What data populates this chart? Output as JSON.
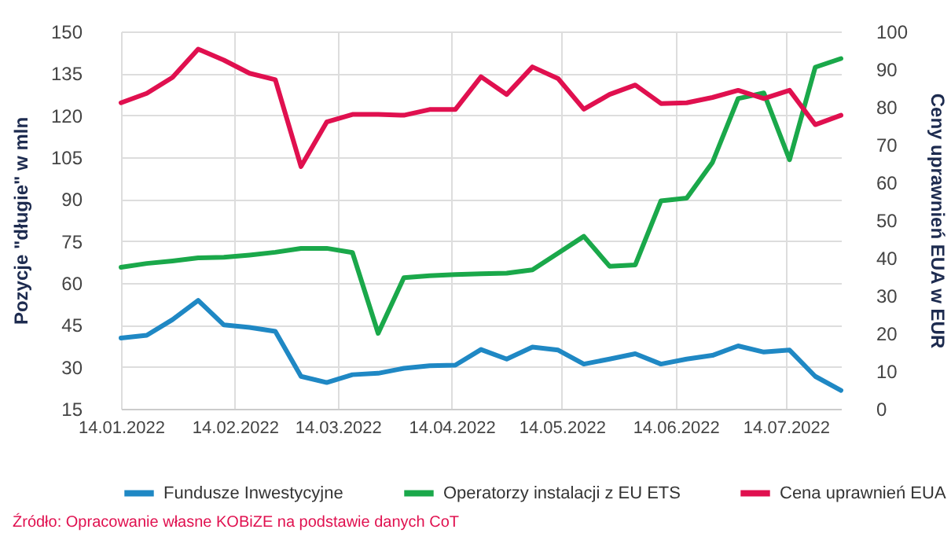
{
  "chart_data": {
    "type": "line",
    "ylabel": "Pozycje \"długie\" w mln",
    "y2label": "Ceny uprawnień EUA w EUR",
    "x": [
      "2022-01-14",
      "2022-01-21",
      "2022-01-28",
      "2022-02-04",
      "2022-02-11",
      "2022-02-18",
      "2022-02-25",
      "2022-03-04",
      "2022-03-11",
      "2022-03-18",
      "2022-03-25",
      "2022-04-01",
      "2022-04-08",
      "2022-04-15",
      "2022-04-22",
      "2022-04-29",
      "2022-05-06",
      "2022-05-13",
      "2022-05-20",
      "2022-05-27",
      "2022-06-03",
      "2022-06-10",
      "2022-06-17",
      "2022-06-24",
      "2022-07-01",
      "2022-07-08",
      "2022-07-15",
      "2022-07-22",
      "2022-07-29"
    ],
    "series": [
      {
        "name": "Fundusze Inwestycyjne",
        "color": "#1f88c4",
        "values": [
          40.3,
          41.3,
          46.9,
          53.8,
          45,
          44.1,
          42.7,
          26.6,
          24.4,
          27.2,
          27.7,
          29.5,
          30.4,
          30.6,
          36.2,
          32.8,
          37.1,
          36,
          31,
          32.8,
          34.7,
          31,
          32.8,
          34.1,
          37.5,
          35.3,
          36,
          26.6,
          21.6
        ]
      },
      {
        "name": "Operatorzy instalacji z EU ETS",
        "color": "#1aa84a",
        "values": [
          65.6,
          67,
          67.9,
          69,
          69.2,
          70,
          71,
          72.4,
          72.4,
          70.9,
          42,
          61.9,
          62.6,
          63,
          63.3,
          63.5,
          64.7,
          70.7,
          76.7,
          66,
          66.5,
          89.4,
          90.4,
          103.1,
          126,
          128,
          104.1,
          137.2,
          140.3
        ]
      },
      {
        "name": "Cena uprawnień EUA",
        "color": "#e0104f",
        "axis": "y2",
        "values": [
          81.1,
          83.6,
          87.8,
          95.3,
          92.4,
          88.9,
          87.2,
          64.2,
          76,
          78,
          78,
          77.8,
          79.3,
          79.3,
          88,
          83.3,
          90.6,
          87.5,
          79.4,
          83.3,
          85.8,
          80.9,
          81.1,
          82.5,
          84.4,
          82.2,
          84.4,
          75.3,
          77.8
        ]
      }
    ],
    "xlim": [
      "2022-01-14",
      "2022-07-29"
    ],
    "xticks": [
      {
        "value": "2022-01-14",
        "label": "14.01.2022"
      },
      {
        "value": "2022-02-14",
        "label": "14.02.2022"
      },
      {
        "value": "2022-03-14",
        "label": "14.03.2022"
      },
      {
        "value": "2022-04-14",
        "label": "14.04.2022"
      },
      {
        "value": "2022-05-14",
        "label": "14.05.2022"
      },
      {
        "value": "2022-06-14",
        "label": "14.06.2022"
      },
      {
        "value": "2022-07-14",
        "label": "14.07.2022"
      }
    ],
    "ylim": [
      15,
      150
    ],
    "yticks": [
      15,
      30,
      45,
      60,
      75,
      90,
      105,
      120,
      135,
      150
    ],
    "y2lim": [
      0,
      100
    ],
    "y2ticks": [
      0,
      10,
      20,
      30,
      40,
      50,
      60,
      70,
      80,
      90,
      100
    ],
    "grid": true,
    "legend": "bottom",
    "annotations": [
      "Źródło: Opracowanie własne KOBiZE na podstawie danych CoT"
    ]
  }
}
